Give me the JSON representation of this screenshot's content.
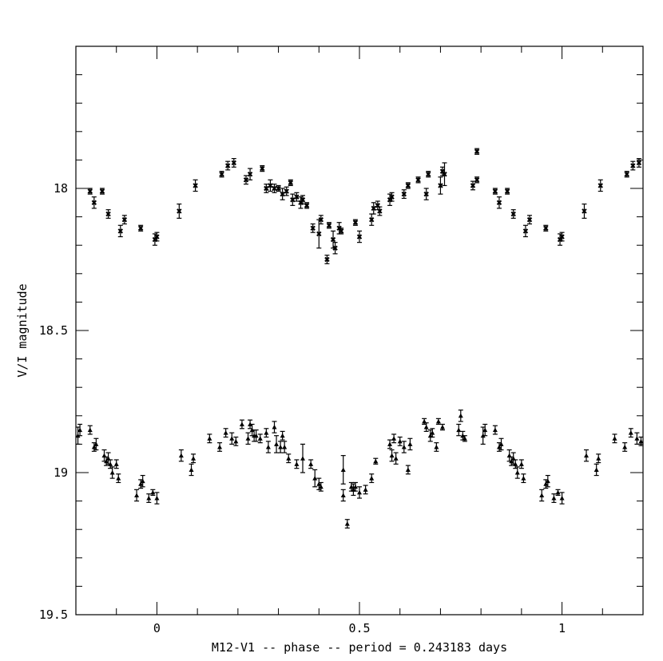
{
  "chart_data": {
    "type": "scatter",
    "title": "",
    "xlabel": "M12-V1 -- phase -- period = 0.243183 days",
    "ylabel": "V/I magnitude",
    "xlim": [
      -0.2,
      1.2
    ],
    "ylim": [
      19.5,
      17.5
    ],
    "y_inverted": true,
    "x_ticks": [
      {
        "v": 0,
        "label": "0"
      },
      {
        "v": 0.5,
        "label": "0.5"
      },
      {
        "v": 1,
        "label": "1"
      }
    ],
    "y_ticks": [
      {
        "v": 18,
        "label": "18"
      },
      {
        "v": 18.5,
        "label": "18.5"
      },
      {
        "v": 19,
        "label": "19"
      },
      {
        "v": 19.5,
        "label": "19.5"
      }
    ],
    "grid": false,
    "series": [
      {
        "marker": "cross",
        "points": [
          [
            -0.165,
            18.01,
            0.01
          ],
          [
            -0.155,
            18.05,
            0.02
          ],
          [
            -0.135,
            18.01,
            0.01
          ],
          [
            -0.12,
            18.09,
            0.015
          ],
          [
            -0.09,
            18.15,
            0.02
          ],
          [
            -0.08,
            18.11,
            0.015
          ],
          [
            -0.04,
            18.14,
            0.01
          ],
          [
            -0.005,
            18.18,
            0.02
          ],
          [
            0,
            18.17,
            0.015
          ],
          [
            0.055,
            18.08,
            0.025
          ],
          [
            0.095,
            17.99,
            0.02
          ],
          [
            0.16,
            17.95,
            0.01
          ],
          [
            0.175,
            17.92,
            0.015
          ],
          [
            0.19,
            17.91,
            0.015
          ],
          [
            0.22,
            17.97,
            0.015
          ],
          [
            0.23,
            17.95,
            0.02
          ],
          [
            0.26,
            17.93,
            0.01
          ],
          [
            0.27,
            18.0,
            0.015
          ],
          [
            0.28,
            17.99,
            0.02
          ],
          [
            0.29,
            18.0,
            0.015
          ],
          [
            0.3,
            18.0,
            0.01
          ],
          [
            0.31,
            18.02,
            0.02
          ],
          [
            0.32,
            18.01,
            0.015
          ],
          [
            0.33,
            17.98,
            0.01
          ],
          [
            0.335,
            18.04,
            0.02
          ],
          [
            0.345,
            18.03,
            0.015
          ],
          [
            0.355,
            18.05,
            0.02
          ],
          [
            0.36,
            18.04,
            0.015
          ],
          [
            0.37,
            18.06,
            0.01
          ],
          [
            0.385,
            18.14,
            0.015
          ],
          [
            0.4,
            18.16,
            0.05
          ],
          [
            0.405,
            18.11,
            0.015
          ],
          [
            0.42,
            18.25,
            0.015
          ],
          [
            0.425,
            18.13,
            0.01
          ],
          [
            0.435,
            18.18,
            0.03
          ],
          [
            0.44,
            18.21,
            0.02
          ],
          [
            0.45,
            18.14,
            0.02
          ],
          [
            0.455,
            18.15,
            0.01
          ],
          [
            0.49,
            18.12,
            0.01
          ],
          [
            0.5,
            18.17,
            0.02
          ],
          [
            0.53,
            18.11,
            0.02
          ],
          [
            0.535,
            18.07,
            0.02
          ],
          [
            0.545,
            18.06,
            0.015
          ],
          [
            0.55,
            18.08,
            0.015
          ],
          [
            0.575,
            18.04,
            0.02
          ],
          [
            0.58,
            18.03,
            0.015
          ],
          [
            0.61,
            18.02,
            0.015
          ],
          [
            0.62,
            17.99,
            0.01
          ],
          [
            0.645,
            17.97,
            0.01
          ],
          [
            0.665,
            18.02,
            0.02
          ],
          [
            0.67,
            17.95,
            0.01
          ],
          [
            0.7,
            17.99,
            0.03
          ],
          [
            0.705,
            17.94,
            0.015
          ],
          [
            0.71,
            17.95,
            0.04
          ],
          [
            0.78,
            17.99,
            0.015
          ],
          [
            0.79,
            17.87,
            0.01
          ],
          [
            0.79,
            17.97,
            0.01
          ],
          [
            0.835,
            18.01,
            0.01
          ],
          [
            0.845,
            18.05,
            0.02
          ],
          [
            0.865,
            18.01,
            0.01
          ],
          [
            0.88,
            18.09,
            0.015
          ],
          [
            0.91,
            18.15,
            0.02
          ],
          [
            0.92,
            18.11,
            0.015
          ],
          [
            0.96,
            18.14,
            0.01
          ],
          [
            0.995,
            18.18,
            0.02
          ],
          [
            1,
            18.17,
            0.015
          ],
          [
            1.055,
            18.08,
            0.025
          ],
          [
            1.095,
            17.99,
            0.02
          ],
          [
            1.16,
            17.95,
            0.01
          ],
          [
            1.175,
            17.92,
            0.015
          ],
          [
            1.19,
            17.91,
            0.015
          ]
        ]
      },
      {
        "marker": "triangle",
        "points": [
          [
            -0.195,
            18.87,
            0.03
          ],
          [
            -0.19,
            18.85,
            0.02
          ],
          [
            -0.165,
            18.85,
            0.015
          ],
          [
            -0.155,
            18.91,
            0.015
          ],
          [
            -0.15,
            18.9,
            0.02
          ],
          [
            -0.13,
            18.94,
            0.02
          ],
          [
            -0.125,
            18.96,
            0.015
          ],
          [
            -0.12,
            18.95,
            0.02
          ],
          [
            -0.115,
            18.97,
            0.015
          ],
          [
            -0.11,
            19.0,
            0.02
          ],
          [
            -0.1,
            18.97,
            0.015
          ],
          [
            -0.095,
            19.02,
            0.015
          ],
          [
            -0.05,
            19.08,
            0.02
          ],
          [
            -0.04,
            19.04,
            0.015
          ],
          [
            -0.035,
            19.03,
            0.02
          ],
          [
            -0.02,
            19.09,
            0.015
          ],
          [
            -0.01,
            19.07,
            0.01
          ],
          [
            0,
            19.09,
            0.02
          ],
          [
            0.06,
            18.94,
            0.02
          ],
          [
            0.085,
            18.99,
            0.02
          ],
          [
            0.09,
            18.95,
            0.015
          ],
          [
            0.13,
            18.88,
            0.015
          ],
          [
            0.155,
            18.91,
            0.015
          ],
          [
            0.17,
            18.86,
            0.015
          ],
          [
            0.185,
            18.88,
            0.02
          ],
          [
            0.195,
            18.89,
            0.015
          ],
          [
            0.21,
            18.83,
            0.015
          ],
          [
            0.225,
            18.88,
            0.02
          ],
          [
            0.23,
            18.83,
            0.015
          ],
          [
            0.235,
            18.85,
            0.02
          ],
          [
            0.24,
            18.87,
            0.02
          ],
          [
            0.245,
            18.87,
            0.02
          ],
          [
            0.255,
            18.88,
            0.015
          ],
          [
            0.27,
            18.86,
            0.015
          ],
          [
            0.275,
            18.91,
            0.02
          ],
          [
            0.29,
            18.84,
            0.02
          ],
          [
            0.295,
            18.9,
            0.03
          ],
          [
            0.305,
            18.91,
            0.02
          ],
          [
            0.31,
            18.87,
            0.015
          ],
          [
            0.315,
            18.91,
            0.02
          ],
          [
            0.325,
            18.95,
            0.015
          ],
          [
            0.345,
            18.97,
            0.015
          ],
          [
            0.36,
            18.95,
            0.05
          ],
          [
            0.38,
            18.97,
            0.015
          ],
          [
            0.39,
            19.02,
            0.03
          ],
          [
            0.4,
            19.04,
            0.02
          ],
          [
            0.405,
            19.05,
            0.015
          ],
          [
            0.46,
            18.99,
            0.05
          ],
          [
            0.47,
            19.18,
            0.015
          ],
          [
            0.46,
            19.08,
            0.02
          ],
          [
            0.48,
            19.05,
            0.015
          ],
          [
            0.485,
            19.06,
            0.02
          ],
          [
            0.49,
            19.05,
            0.015
          ],
          [
            0.5,
            19.07,
            0.02
          ],
          [
            0.515,
            19.06,
            0.015
          ],
          [
            0.53,
            19.02,
            0.015
          ],
          [
            0.54,
            18.96,
            0.01
          ],
          [
            0.575,
            18.9,
            0.015
          ],
          [
            0.58,
            18.94,
            0.02
          ],
          [
            0.585,
            18.88,
            0.015
          ],
          [
            0.59,
            18.95,
            0.02
          ],
          [
            0.6,
            18.89,
            0.015
          ],
          [
            0.61,
            18.91,
            0.02
          ],
          [
            0.62,
            18.99,
            0.015
          ],
          [
            0.625,
            18.9,
            0.02
          ],
          [
            0.66,
            18.82,
            0.01
          ],
          [
            0.665,
            18.84,
            0.015
          ],
          [
            0.675,
            18.87,
            0.02
          ],
          [
            0.68,
            18.86,
            0.015
          ],
          [
            0.69,
            18.91,
            0.015
          ],
          [
            0.695,
            18.82,
            0.01
          ],
          [
            0.705,
            18.84,
            0.01
          ],
          [
            0.745,
            18.85,
            0.02
          ],
          [
            0.75,
            18.8,
            0.02
          ],
          [
            0.755,
            18.87,
            0.015
          ],
          [
            0.76,
            18.88,
            0.01
          ],
          [
            0.805,
            18.87,
            0.03
          ],
          [
            0.81,
            18.85,
            0.02
          ],
          [
            0.835,
            18.85,
            0.015
          ],
          [
            0.845,
            18.91,
            0.015
          ],
          [
            0.85,
            18.9,
            0.02
          ],
          [
            0.87,
            18.94,
            0.02
          ],
          [
            0.875,
            18.96,
            0.015
          ],
          [
            0.88,
            18.95,
            0.02
          ],
          [
            0.885,
            18.97,
            0.015
          ],
          [
            0.89,
            19.0,
            0.02
          ],
          [
            0.9,
            18.97,
            0.015
          ],
          [
            0.905,
            19.02,
            0.015
          ],
          [
            0.95,
            19.08,
            0.02
          ],
          [
            0.96,
            19.04,
            0.015
          ],
          [
            0.965,
            19.03,
            0.02
          ],
          [
            0.98,
            19.09,
            0.015
          ],
          [
            0.99,
            19.07,
            0.01
          ],
          [
            1,
            19.09,
            0.02
          ],
          [
            1.06,
            18.94,
            0.02
          ],
          [
            1.085,
            18.99,
            0.02
          ],
          [
            1.09,
            18.95,
            0.015
          ],
          [
            1.13,
            18.88,
            0.015
          ],
          [
            1.155,
            18.91,
            0.015
          ],
          [
            1.17,
            18.86,
            0.015
          ],
          [
            1.185,
            18.88,
            0.02
          ],
          [
            1.195,
            18.89,
            0.015
          ]
        ]
      }
    ]
  }
}
